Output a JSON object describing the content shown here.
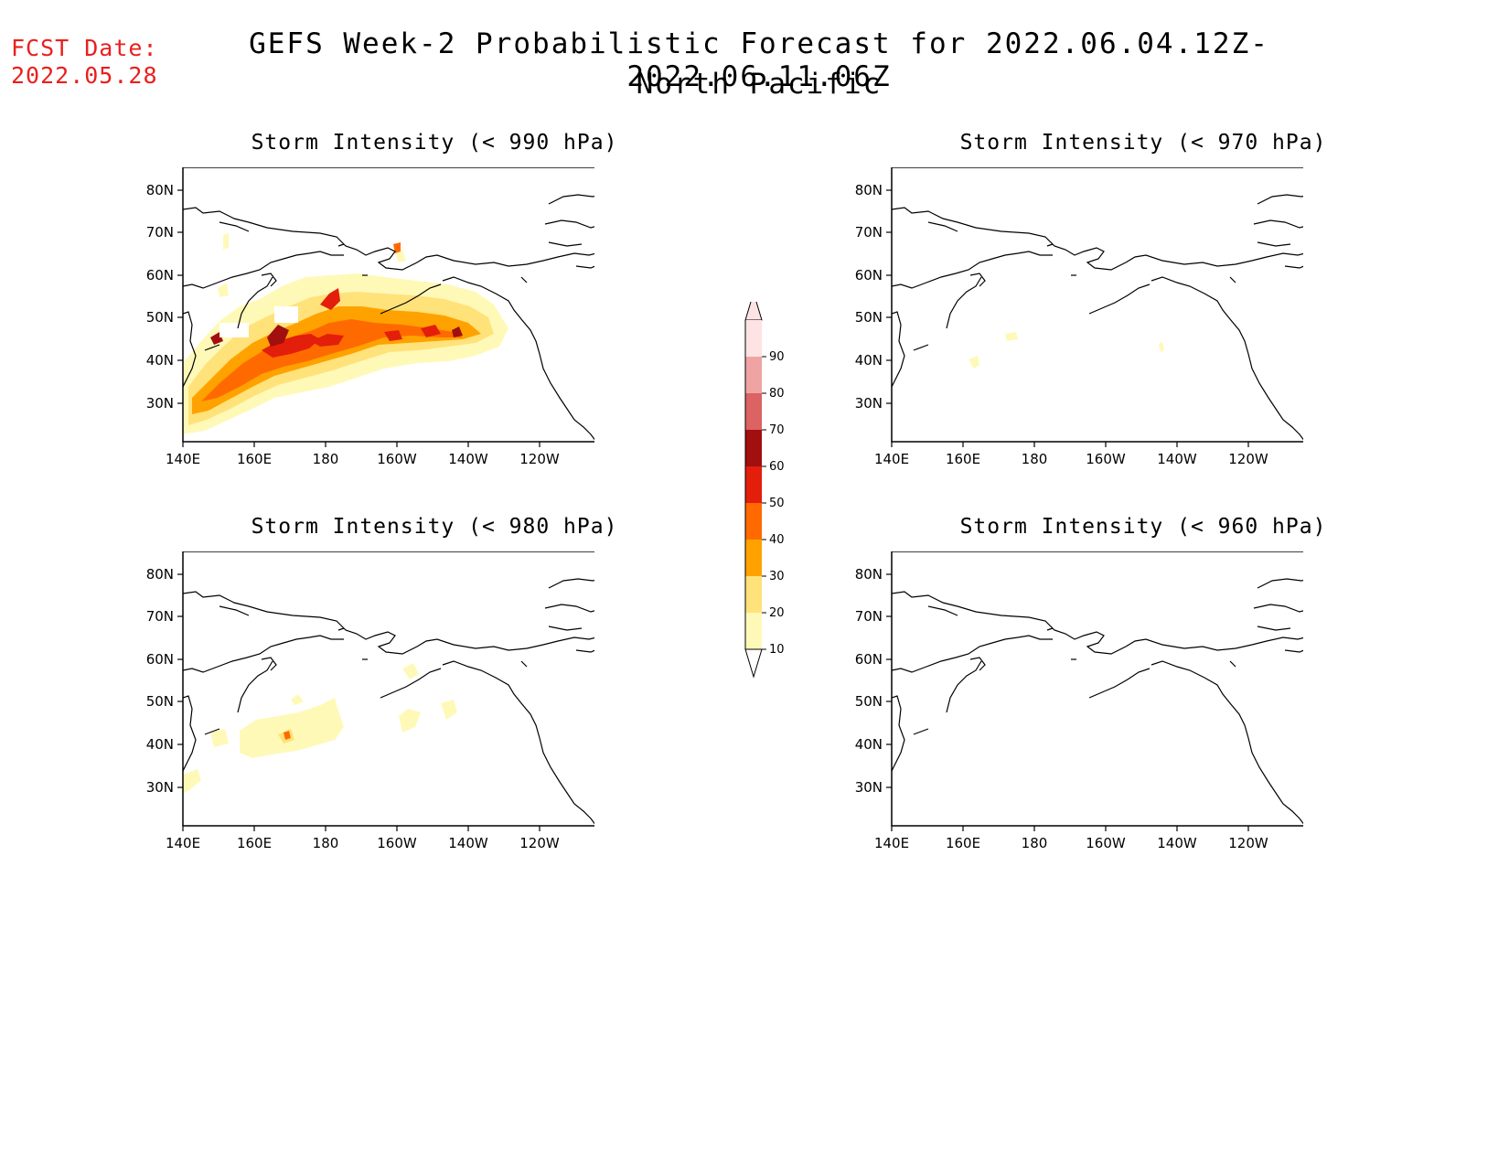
{
  "fcst_date": {
    "label": "FCST Date:",
    "value": "2022.05.28"
  },
  "title": {
    "line1": "GEFS Week-2 Probabilistic Forecast for 2022.06.04.12Z-2022.06.11.06Z",
    "line2": "North Pacific"
  },
  "axes": {
    "lat_labels": [
      "80N",
      "70N",
      "60N",
      "50N",
      "40N",
      "30N"
    ],
    "lon_labels": [
      "140E",
      "160E",
      "180",
      "160W",
      "140W",
      "120W"
    ]
  },
  "panels": [
    {
      "id": "p990",
      "title": "Storm Intensity (< 990 hPa)"
    },
    {
      "id": "p970",
      "title": "Storm Intensity (< 970 hPa)"
    },
    {
      "id": "p980",
      "title": "Storm Intensity (< 980 hPa)"
    },
    {
      "id": "p960",
      "title": "Storm Intensity (< 960 hPa)"
    }
  ],
  "colorbar": {
    "labels": [
      "90",
      "80",
      "70",
      "60",
      "50",
      "40",
      "30",
      "20",
      "10"
    ],
    "colors": [
      "#fde3e3",
      "#f0a3a3",
      "#db6363",
      "#a10f0f",
      "#e31e0b",
      "#ff6a00",
      "#ffa200",
      "#ffe27a",
      "#fff9b8"
    ]
  },
  "colors": {
    "fcst_date": "#e8201e",
    "land_line": "#000000"
  }
}
